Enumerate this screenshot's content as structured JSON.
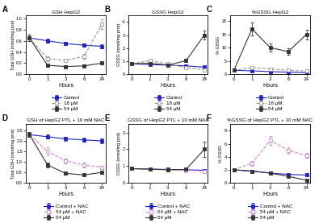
{
  "chart_data": [
    {
      "type": "line",
      "title": "GSH HepG2",
      "annotation": "A",
      "x_label": "Hours",
      "y_label": "Total GSH (nmol/mg prot)",
      "categories": [
        "0",
        "1",
        "3",
        "6",
        "24"
      ],
      "series": [
        {
          "name": "Control",
          "color": "#2222bb",
          "marker": "square",
          "line_style": "solid",
          "values": [
            0.65,
            0.6,
            0.55,
            0.52,
            0.5
          ],
          "errors": [
            0.06,
            0.04,
            0.03,
            0.03,
            0.03
          ]
        },
        {
          "name": "18 μM",
          "color": "#999999",
          "marker": "open square",
          "line_style": "dashed",
          "values": [
            0.65,
            0.28,
            0.25,
            0.32,
            0.9
          ],
          "errors": [
            0.06,
            0.04,
            0.03,
            0.04,
            0.09
          ]
        },
        {
          "name": "54 μM",
          "color": "#333333",
          "marker": "square",
          "line_style": "solid",
          "values": [
            0.65,
            0.16,
            0.14,
            0.15,
            0.2
          ],
          "errors": [
            0.06,
            0.02,
            0.02,
            0.02,
            0.02
          ]
        }
      ],
      "ylim": [
        0,
        1.05
      ],
      "yticks": [
        0.0,
        0.2,
        0.4,
        0.6,
        0.8,
        1.0
      ]
    },
    {
      "type": "line",
      "title": "GSSG HepG2",
      "annotation": "B",
      "x_label": "Hours",
      "y_label": "GSSG (nmol/mg prot)",
      "categories": [
        "0",
        "1",
        "3",
        "6",
        "24"
      ],
      "series": [
        {
          "name": "Control",
          "color": "#2222bb",
          "marker": "square",
          "line_style": "solid",
          "values": [
            0.8,
            0.75,
            0.7,
            0.65,
            0.55
          ],
          "errors": [
            0.05,
            0.04,
            0.04,
            0.04,
            0.03
          ]
        },
        {
          "name": "18 μM",
          "color": "#999999",
          "marker": "open square",
          "line_style": "dashed",
          "values": [
            0.8,
            1.05,
            0.8,
            0.5,
            0.35
          ],
          "errors": [
            0.05,
            0.1,
            0.07,
            0.05,
            0.03
          ]
        },
        {
          "name": "54 μM",
          "color": "#333333",
          "marker": "square",
          "line_style": "solid",
          "values": [
            0.8,
            0.85,
            0.7,
            1.05,
            3.0
          ],
          "errors": [
            0.05,
            0.08,
            0.07,
            0.12,
            0.35
          ]
        }
      ],
      "ylim": [
        0,
        4.5
      ],
      "yticks": [
        0,
        1,
        2,
        3,
        4
      ]
    },
    {
      "type": "line",
      "title": "%GSSG HepG2",
      "annotation": "C",
      "x_label": "Hours",
      "y_label": "% GSSG",
      "categories": [
        "0",
        "1",
        "3",
        "6",
        "24"
      ],
      "series": [
        {
          "name": "Control",
          "color": "#2222bb",
          "marker": "square",
          "line_style": "solid",
          "values": [
            1.5,
            1.3,
            1.0,
            0.8,
            0.6
          ],
          "errors": [
            0.2,
            0.15,
            0.1,
            0.08,
            0.06
          ]
        },
        {
          "name": "18 μM",
          "color": "#999999",
          "marker": "open square",
          "line_style": "dashed",
          "values": [
            1.5,
            2.5,
            2.0,
            1.5,
            1.2
          ],
          "errors": [
            0.2,
            0.3,
            0.2,
            0.15,
            0.1
          ]
        },
        {
          "name": "54 μM",
          "color": "#333333",
          "marker": "square",
          "line_style": "solid",
          "values": [
            1.5,
            17.0,
            10.0,
            8.5,
            15.0
          ],
          "errors": [
            0.2,
            2.5,
            1.5,
            1.2,
            1.8
          ]
        }
      ],
      "ylim": [
        0,
        22
      ],
      "yticks": [
        0,
        5,
        10,
        15,
        20
      ]
    },
    {
      "type": "line",
      "title": "GSH of HepG2 PTL + 10 mM NAC",
      "annotation": "D",
      "x_label": "Hours",
      "y_label": "Total GSH (nmol/mg prot)",
      "categories": [
        "0",
        "1",
        "3",
        "6",
        "24"
      ],
      "series": [
        {
          "name": "Control + NAC",
          "color": "#2222bb",
          "marker": "square",
          "line_style": "solid",
          "values": [
            2.3,
            2.2,
            2.1,
            2.05,
            2.0
          ],
          "errors": [
            0.12,
            0.1,
            0.1,
            0.1,
            0.1
          ]
        },
        {
          "name": "54 μM + NAC",
          "color": "#cc88cc",
          "marker": "open square",
          "line_style": "dashed",
          "values": [
            2.3,
            1.5,
            1.05,
            0.85,
            0.75
          ],
          "errors": [
            0.12,
            0.18,
            0.12,
            0.1,
            0.08
          ]
        },
        {
          "name": "54 μM",
          "color": "#333333",
          "marker": "square",
          "line_style": "solid",
          "values": [
            2.3,
            0.85,
            0.45,
            0.38,
            0.5
          ],
          "errors": [
            0.12,
            0.1,
            0.05,
            0.04,
            0.06
          ]
        }
      ],
      "ylim": [
        0,
        2.8
      ],
      "yticks": [
        0.0,
        0.5,
        1.0,
        1.5,
        2.0,
        2.5
      ]
    },
    {
      "type": "line",
      "title": "GSSG of HepG2 PTL + 10 mM NAC",
      "annotation": "E",
      "x_label": "Hours",
      "y_label": "GSSG (nmol/mg prot)",
      "categories": [
        "0",
        "1",
        "3",
        "6",
        "24"
      ],
      "series": [
        {
          "name": "Control + NAC",
          "color": "#2222bb",
          "marker": "square",
          "line_style": "solid",
          "values": [
            0.85,
            0.82,
            0.8,
            0.78,
            0.75
          ],
          "errors": [
            0.05,
            0.05,
            0.05,
            0.04,
            0.04
          ]
        },
        {
          "name": "54 μM + NAC",
          "color": "#cc88cc",
          "marker": "open square",
          "line_style": "dashed",
          "values": [
            0.85,
            0.82,
            0.78,
            0.75,
            0.7
          ],
          "errors": [
            0.05,
            0.05,
            0.05,
            0.04,
            0.04
          ]
        },
        {
          "name": "54 μM",
          "color": "#333333",
          "marker": "square",
          "line_style": "solid",
          "values": [
            0.85,
            0.82,
            0.78,
            0.8,
            2.0
          ],
          "errors": [
            0.05,
            0.06,
            0.05,
            0.06,
            0.45
          ]
        }
      ],
      "ylim": [
        0,
        3.5
      ],
      "yticks": [
        0,
        1,
        2,
        3
      ]
    },
    {
      "type": "line",
      "title": "%GSSG of HepG2 PTL + 10 mM NAC",
      "annotation": "F",
      "x_label": "Hours",
      "y_label": "% GSSG",
      "categories": [
        "0",
        "1",
        "3",
        "6",
        "24"
      ],
      "series": [
        {
          "name": "Control + NAC",
          "color": "#2222bb",
          "marker": "square",
          "line_style": "solid",
          "values": [
            2.0,
            1.8,
            1.5,
            1.3,
            1.2
          ],
          "errors": [
            0.15,
            0.12,
            0.1,
            0.1,
            0.1
          ]
        },
        {
          "name": "54 μM + NAC",
          "color": "#cc88cc",
          "marker": "open square",
          "line_style": "dashed",
          "values": [
            2.0,
            3.0,
            6.5,
            5.0,
            4.2
          ],
          "errors": [
            0.15,
            0.4,
            0.7,
            0.5,
            0.4
          ]
        },
        {
          "name": "54 μM",
          "color": "#333333",
          "marker": "square",
          "line_style": "solid",
          "values": [
            2.0,
            1.8,
            1.5,
            1.0,
            0.4
          ],
          "errors": [
            0.15,
            0.15,
            0.12,
            0.1,
            0.05
          ]
        }
      ],
      "ylim": [
        0,
        9.0
      ],
      "yticks": [
        0,
        2,
        4,
        6,
        8
      ]
    }
  ]
}
